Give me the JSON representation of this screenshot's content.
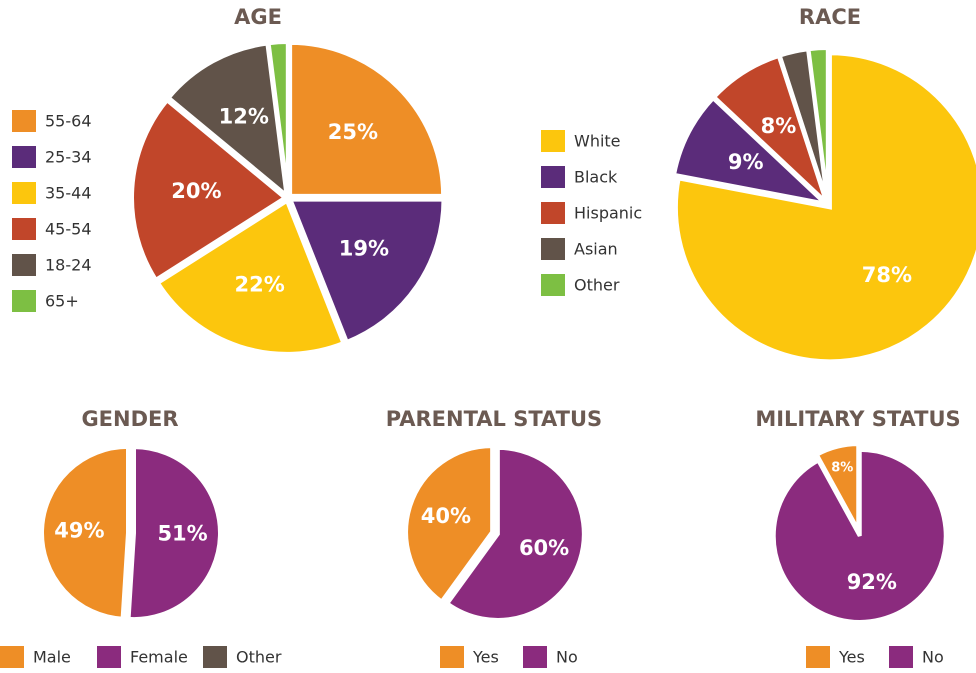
{
  "chart_data": [
    {
      "type": "pie",
      "title": "AGE",
      "direction": "clockwise",
      "categories": [
        "55-64",
        "25-34",
        "35-44",
        "45-54",
        "18-24",
        "65+"
      ],
      "values": [
        25,
        19,
        22,
        20,
        12,
        2
      ],
      "value_labels": [
        "25%",
        "19%",
        "22%",
        "20%",
        "12%",
        null
      ],
      "colors": [
        "#ee8e26",
        "#5b2c7a",
        "#fcc60d",
        "#c1462a",
        "#615349",
        "#7dbf43"
      ]
    },
    {
      "type": "pie",
      "title": "RACE",
      "direction": "clockwise",
      "categories": [
        "White",
        "Black",
        "Hispanic",
        "Asian",
        "Other"
      ],
      "values": [
        78,
        9,
        8,
        3,
        2
      ],
      "value_labels": [
        "78%",
        "9%",
        "8%",
        null,
        null
      ],
      "colors": [
        "#fcc60d",
        "#5b2c7a",
        "#c1462a",
        "#615349",
        "#7dbf43"
      ]
    },
    {
      "type": "pie",
      "title": "GENDER",
      "direction": "counterclockwise",
      "categories": [
        "Male",
        "Female",
        "Other"
      ],
      "values": [
        49,
        51,
        0
      ],
      "value_labels": [
        "49%",
        "51%",
        null
      ],
      "colors": [
        "#ee8e26",
        "#8b2b7e",
        "#615349"
      ]
    },
    {
      "type": "pie",
      "title": "PARENTAL STATUS",
      "direction": "counterclockwise",
      "categories": [
        "Yes",
        "No"
      ],
      "values": [
        40,
        60
      ],
      "value_labels": [
        "40%",
        "60%"
      ],
      "colors": [
        "#ee8e26",
        "#8b2b7e"
      ]
    },
    {
      "type": "pie",
      "title": "MILITARY STATUS",
      "direction": "counterclockwise",
      "categories": [
        "Yes",
        "No"
      ],
      "values": [
        8,
        92
      ],
      "value_labels": [
        "8%",
        "92%"
      ],
      "colors": [
        "#ee8e26",
        "#8b2b7e"
      ]
    }
  ]
}
